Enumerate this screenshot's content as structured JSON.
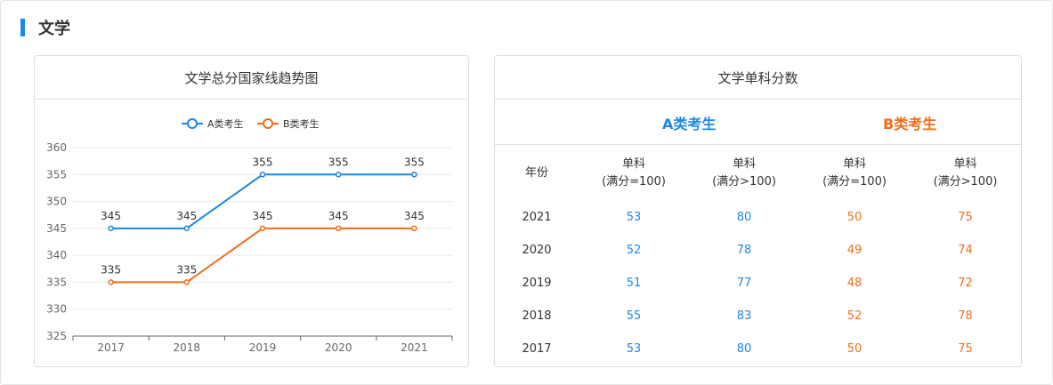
{
  "section": {
    "title": "文学"
  },
  "trend_card": {
    "title": "文学总分国家线趋势图"
  },
  "chart_data": {
    "type": "line",
    "title": "文学总分国家线趋势图",
    "categories": [
      "2017",
      "2018",
      "2019",
      "2020",
      "2021"
    ],
    "series": [
      {
        "name": "A类考生",
        "values": [
          345,
          345,
          355,
          355,
          355
        ],
        "color": "#1e88e5"
      },
      {
        "name": "B类考生",
        "values": [
          335,
          335,
          345,
          345,
          345
        ],
        "color": "#f26c1a"
      }
    ],
    "ylim": [
      325,
      360
    ],
    "yticks": [
      325,
      330,
      335,
      340,
      345,
      350,
      355,
      360
    ],
    "grid": true,
    "legend": "top-center",
    "data_labels": true
  },
  "score_card": {
    "title": "文学单科分数",
    "group_a": "A类考生",
    "group_b": "B类考生",
    "headers": {
      "year": "年份",
      "single_a1": [
        "单科",
        "(满分=100)"
      ],
      "single_a2": [
        "单科",
        "(满分>100)"
      ],
      "single_b1": [
        "单科",
        "(满分=100)"
      ],
      "single_b2": [
        "单科",
        "(满分>100)"
      ]
    },
    "rows": [
      {
        "year": "2021",
        "a1": "53",
        "a2": "80",
        "b1": "50",
        "b2": "75"
      },
      {
        "year": "2020",
        "a1": "52",
        "a2": "78",
        "b1": "49",
        "b2": "74"
      },
      {
        "year": "2019",
        "a1": "51",
        "a2": "77",
        "b1": "48",
        "b2": "72"
      },
      {
        "year": "2018",
        "a1": "55",
        "a2": "83",
        "b1": "52",
        "b2": "78"
      },
      {
        "year": "2017",
        "a1": "53",
        "a2": "80",
        "b1": "50",
        "b2": "75"
      }
    ]
  },
  "colors": {
    "accent": "#1e88e5",
    "series_a": "#1e88e5",
    "series_b": "#f26c1a"
  }
}
